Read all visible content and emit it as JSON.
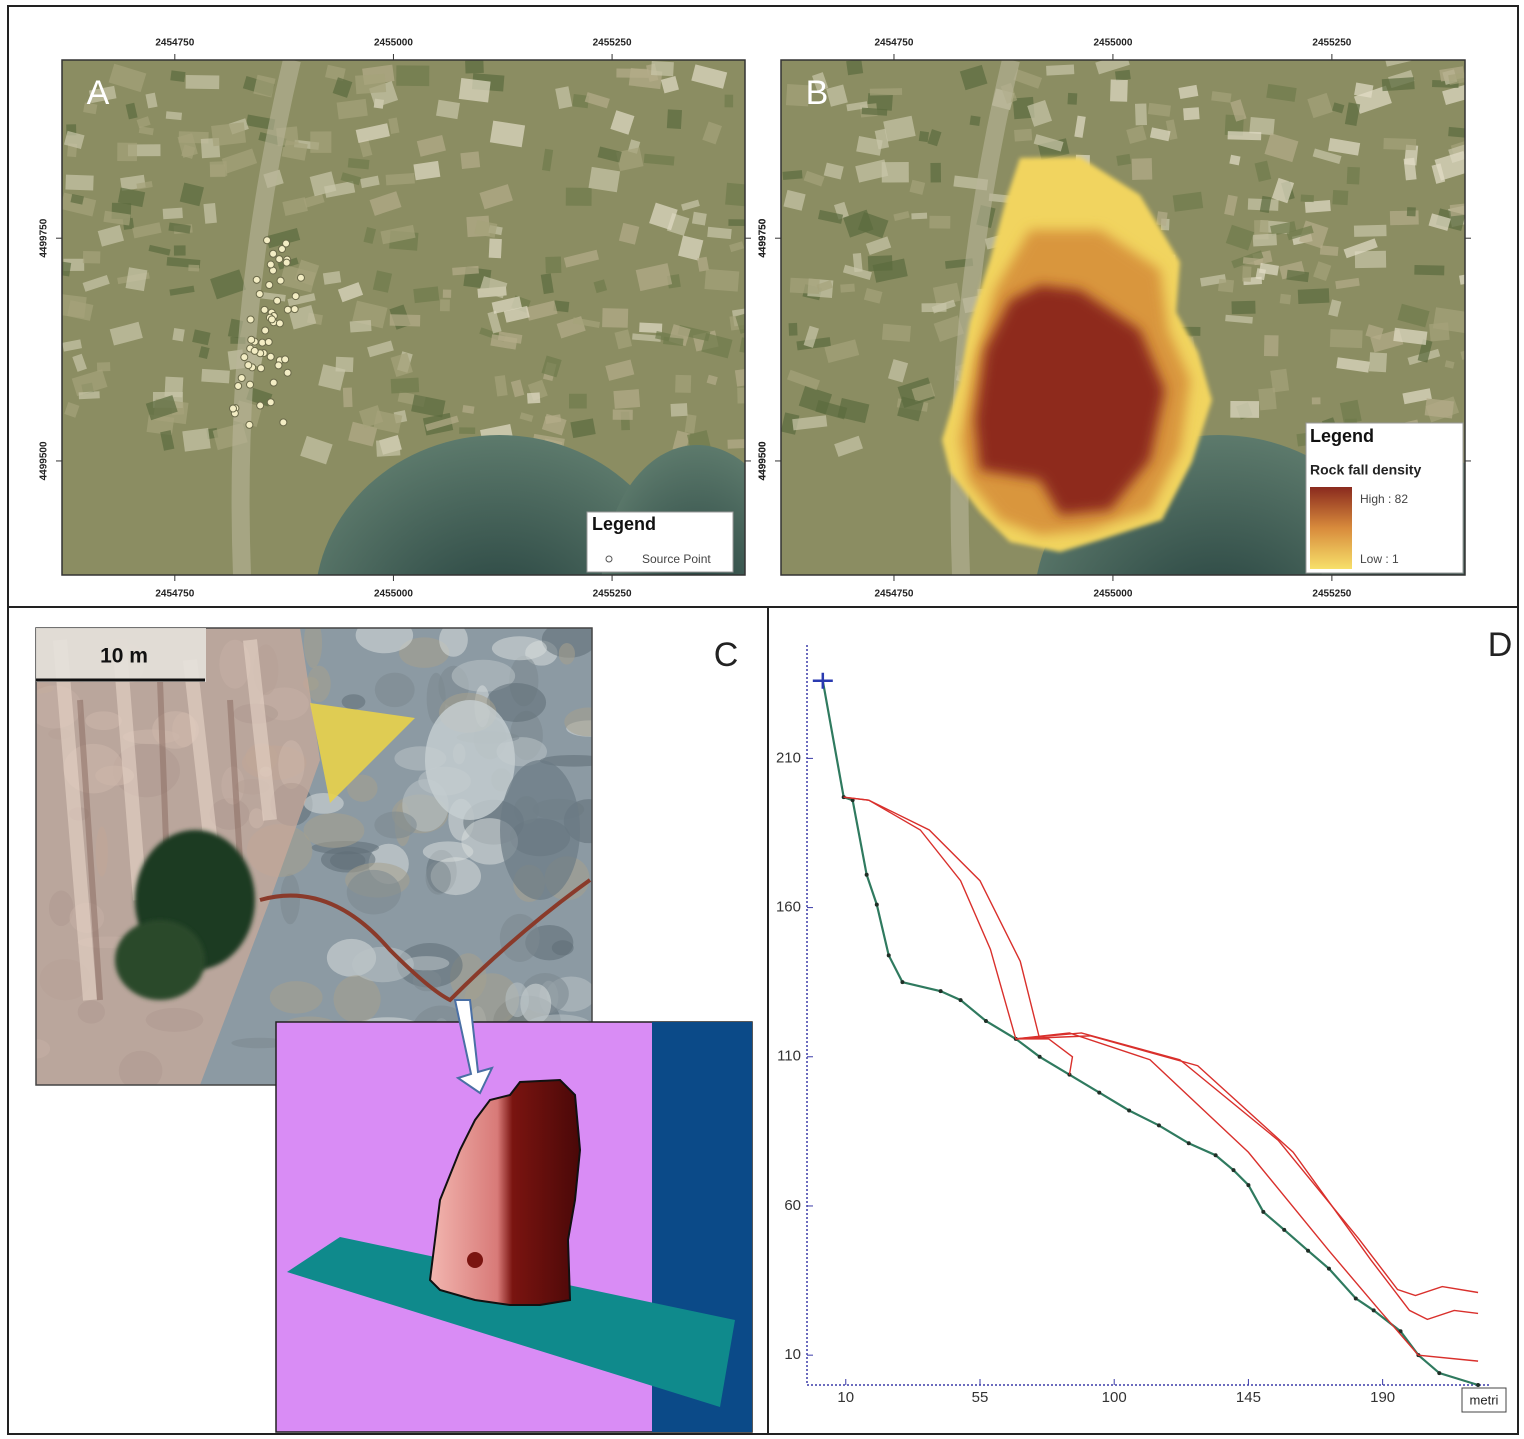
{
  "maps": {
    "xlim": [
      2454621,
      2455402
    ],
    "ylim": [
      4499372,
      4499950
    ],
    "xticks": [
      2454750,
      2455000,
      2455250
    ],
    "yticks": [
      4499500,
      4499750
    ]
  },
  "panel_a": {
    "label": "A",
    "legend_title": "Legend",
    "legend_item": "Source Point"
  },
  "panel_b": {
    "label": "B",
    "legend_title": "Legend",
    "legend_subtitle": "Rock fall density",
    "legend_high": "High : 82",
    "legend_low": "Low : 1"
  },
  "panel_c": {
    "label": "C",
    "scale_bar": "10 m"
  },
  "panel_d": {
    "label": "D"
  },
  "chart_data": {
    "type": "line",
    "xlim": [
      -3,
      226
    ],
    "ylim": [
      0,
      248
    ],
    "xticks": [
      10,
      55,
      100,
      145,
      190
    ],
    "yticks": [
      10,
      60,
      110,
      160,
      210
    ],
    "x_unit": "metri",
    "series": [
      {
        "color": "#2f7a5f",
        "x": [
          2.3,
          9.3,
          12.3,
          17,
          20.4,
          24.4,
          29,
          41.8,
          48.5,
          57,
          67,
          75,
          85,
          95,
          105,
          115,
          125,
          134,
          140,
          145,
          150,
          157,
          165,
          172,
          181,
          187,
          196,
          202,
          209,
          222
        ],
        "values": [
          236,
          197,
          196,
          171,
          161,
          144,
          135,
          132,
          129,
          122,
          116,
          110,
          104,
          98,
          92,
          87,
          81,
          77,
          72,
          67,
          58,
          52,
          45,
          39,
          29,
          25,
          18,
          10,
          4,
          0
        ]
      },
      {
        "color": "#d9302c",
        "x": [
          9.3,
          17.7,
          35,
          48.5,
          58.5,
          67
        ],
        "values": [
          197,
          196,
          186,
          169,
          146,
          116
        ]
      },
      {
        "color": "#d9302c",
        "x": [
          9.3,
          17.7,
          38,
          55,
          68.5,
          75
        ],
        "values": [
          197,
          196,
          186,
          169,
          142,
          116
        ]
      },
      {
        "color": "#d9302c",
        "x": [
          67,
          85,
          112,
          145,
          172,
          189,
          202,
          222
        ],
        "values": [
          116,
          118,
          109,
          78,
          45,
          25,
          10,
          8
        ]
      },
      {
        "color": "#d9302c",
        "x": [
          67,
          89,
          122,
          155,
          182,
          195,
          201,
          210,
          222
        ],
        "values": [
          116,
          118,
          109,
          82,
          49,
          32,
          30,
          33,
          31
        ]
      },
      {
        "color": "#d9302c",
        "x": [
          67,
          92,
          128,
          160,
          186,
          199,
          205,
          214,
          222
        ],
        "values": [
          116,
          117,
          107,
          78,
          42,
          25,
          22,
          25,
          24
        ]
      },
      {
        "color": "#d9302c",
        "x": [
          67,
          78,
          86,
          85
        ],
        "values": [
          116,
          116,
          110,
          104
        ]
      }
    ]
  }
}
